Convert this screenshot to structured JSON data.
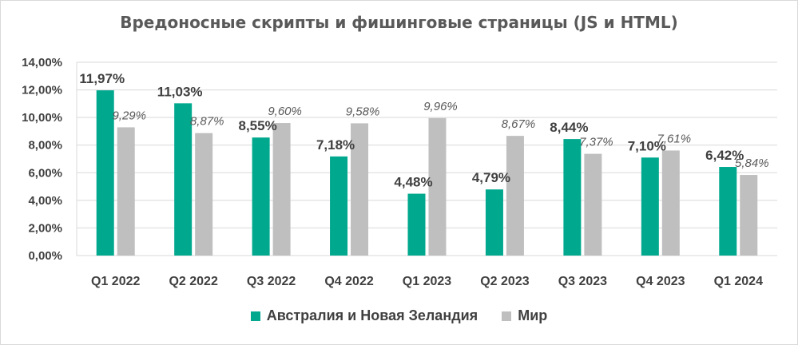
{
  "chart_data": {
    "type": "bar",
    "title": "Вредоносные скрипты и фишинговые страницы (JS и HTML)",
    "categories": [
      "Q1 2022",
      "Q2 2022",
      "Q3 2022",
      "Q4 2022",
      "Q1 2023",
      "Q2 2023",
      "Q3 2023",
      "Q4 2023",
      "Q1 2024"
    ],
    "series": [
      {
        "name": "Австралия и Новая Зеландия",
        "color": "#00a88e",
        "values": [
          11.97,
          11.03,
          8.55,
          7.18,
          4.48,
          4.79,
          8.44,
          7.1,
          6.42
        ],
        "labels": [
          "11,97%",
          "11,03%",
          "8,55%",
          "7,18%",
          "4,48%",
          "4,79%",
          "8,44%",
          "7,10%",
          "6,42%"
        ]
      },
      {
        "name": "Мир",
        "color": "#bfbfbf",
        "values": [
          9.29,
          8.87,
          9.6,
          9.58,
          9.96,
          8.67,
          7.37,
          7.61,
          5.84
        ],
        "labels": [
          "9,29%",
          "8,87%",
          "9,60%",
          "9,58%",
          "9,96%",
          "8,67%",
          "7,37%",
          "7,61%",
          "5,84%"
        ]
      }
    ],
    "ylim": [
      0,
      14
    ],
    "yticks": [
      0,
      2,
      4,
      6,
      8,
      10,
      12,
      14
    ],
    "ytick_labels": [
      "0,00%",
      "2,00%",
      "4,00%",
      "6,00%",
      "8,00%",
      "10,00%",
      "12,00%",
      "14,00%"
    ],
    "grid": true,
    "legend_position": "bottom"
  }
}
